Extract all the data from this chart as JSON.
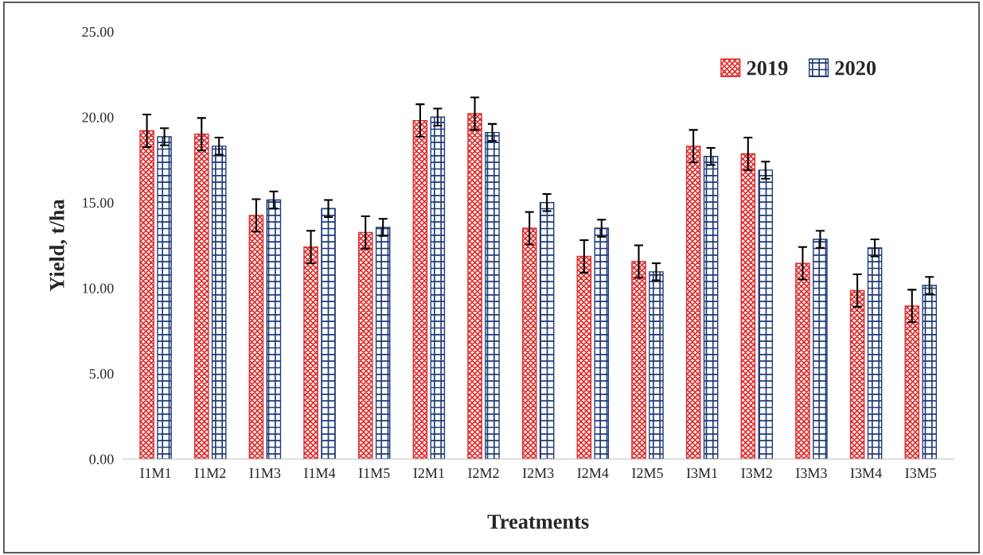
{
  "chart_data": {
    "type": "bar",
    "xlabel": "Treatments",
    "ylabel": "Yield, t/ha",
    "categories": [
      "I1M1",
      "I1M2",
      "I1M3",
      "I1M4",
      "I1M5",
      "I2M1",
      "I2M2",
      "I2M3",
      "I2M4",
      "I2M5",
      "I3M1",
      "I3M2",
      "I3M3",
      "I3M4",
      "I3M5"
    ],
    "series": [
      {
        "name": "2019",
        "color": "#e02b2b",
        "values": [
          19.2,
          19.0,
          14.25,
          12.4,
          13.25,
          19.8,
          20.2,
          13.5,
          11.85,
          11.55,
          18.3,
          17.85,
          11.45,
          9.85,
          8.95
        ],
        "errors": [
          0.95,
          0.95,
          0.95,
          0.95,
          0.95,
          0.95,
          0.95,
          0.95,
          0.95,
          0.95,
          0.95,
          0.95,
          0.95,
          0.95,
          0.95
        ]
      },
      {
        "name": "2020",
        "color": "#1f3a78",
        "values": [
          18.85,
          18.3,
          15.15,
          14.65,
          13.55,
          20.0,
          19.1,
          15.0,
          13.5,
          10.95,
          17.7,
          16.9,
          12.85,
          12.35,
          10.15
        ],
        "errors": [
          0.5,
          0.5,
          0.5,
          0.5,
          0.5,
          0.5,
          0.5,
          0.5,
          0.5,
          0.5,
          0.5,
          0.5,
          0.5,
          0.5,
          0.5
        ]
      }
    ],
    "ylim": [
      0,
      25
    ],
    "yticks": [
      {
        "value": 0,
        "label": "0.00"
      },
      {
        "value": 5,
        "label": "5.00"
      },
      {
        "value": 10,
        "label": "10.00"
      },
      {
        "value": 15,
        "label": "15.00"
      },
      {
        "value": 20,
        "label": "20.00"
      },
      {
        "value": 25,
        "label": "25.00"
      }
    ],
    "grid": false,
    "legend": "top right"
  }
}
